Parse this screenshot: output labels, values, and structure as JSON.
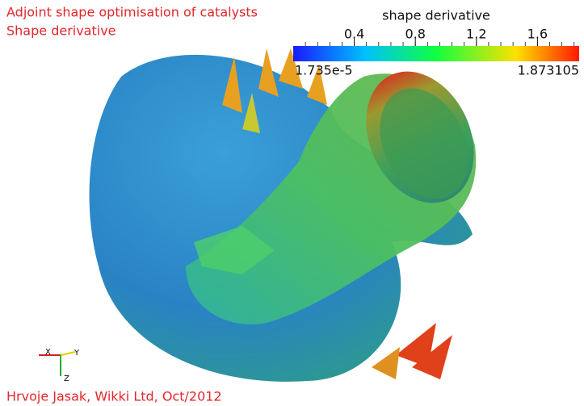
{
  "header": {
    "title": "Adjoint shape optimisation of catalysts",
    "subtitle": "Shape derivative"
  },
  "color_legend": {
    "title": "shape derivative",
    "range": [
      {
        "value": 1.735e-05,
        "label": "1.735e-5"
      },
      1.873105
    ],
    "ticks": [
      0.4,
      0.8,
      1.2,
      1.6
    ]
  },
  "axes_triad": {
    "x": "X",
    "y": "Y",
    "z": "Z"
  },
  "credit": "Hrvoje Jasak, Wikki Ltd, Oct/2012"
}
